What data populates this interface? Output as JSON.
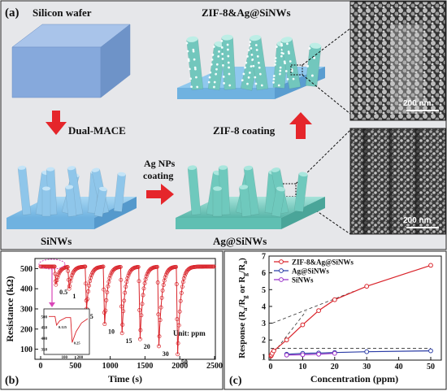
{
  "panel_a": {
    "panel_label": "(a)",
    "silicon_wafer": "Silicon wafer",
    "zif8_ag_sinws": "ZIF-8&Ag@SiNWs",
    "dual_mace": "Dual-MACE",
    "zif8_coating": "ZIF-8 coating",
    "ag_nps_coating_1": "Ag NPs",
    "ag_nps_coating_2": "coating",
    "sinws": "SiNWs",
    "ag_sinws": "Ag@SiNWs",
    "scale_top": "200 nm",
    "scale_bottom": "200 nm"
  },
  "colors": {
    "wafer_blue": "#7fa4d6",
    "nanowire_blue": "#8fc6ea",
    "ag_teal": "#6fc9bd",
    "arrow_red": "#e5262b",
    "series_zif8": "#d9232a",
    "series_ag": "#2b3da6",
    "series_sinws": "#9b33c9"
  },
  "chart_b": {
    "panel_label": "(b)",
    "ylabel": "Resistance (kΩ)",
    "xlabel": "Time (s)",
    "unit_note": "Unit: ppm",
    "x_ticks": [
      "0",
      "500",
      "1000",
      "1500",
      "2000",
      "2500"
    ],
    "y_ticks": [
      "100",
      "200",
      "300",
      "400",
      "500"
    ],
    "conc_labels": [
      "0.5",
      "1",
      "5",
      "10",
      "15",
      "20",
      "30",
      "50"
    ],
    "inset": {
      "y_ticks": [
        "500",
        "450",
        "400",
        "350"
      ],
      "x_ticks": [
        "100",
        "200"
      ],
      "peak_labels": [
        "0.125",
        "0.25"
      ]
    }
  },
  "chart_data": [
    {
      "type": "line",
      "panel": "(b)",
      "xlabel": "Time (s)",
      "ylabel": "Resistance (kΩ)",
      "xlim": [
        0,
        2500
      ],
      "ylim": [
        50,
        550
      ],
      "baseline": 510,
      "dips": [
        {
          "concentration": 0.5,
          "t_start": 200,
          "min": 420
        },
        {
          "concentration": 1,
          "t_start": 390,
          "min": 400
        },
        {
          "concentration": 5,
          "t_start": 640,
          "min": 300
        },
        {
          "concentration": 10,
          "t_start": 900,
          "min": 225
        },
        {
          "concentration": 15,
          "t_start": 1150,
          "min": 180
        },
        {
          "concentration": 20,
          "t_start": 1410,
          "min": 150
        },
        {
          "concentration": 30,
          "t_start": 1680,
          "min": 115
        },
        {
          "concentration": 50,
          "t_start": 1950,
          "min": 75
        }
      ]
    },
    {
      "type": "line",
      "panel": "(c)",
      "xlabel": "Concentration (ppm)",
      "ylabel": "Response (Ra/Rg or Rg/Ra)",
      "xlim": [
        0,
        50
      ],
      "ylim": [
        0.8,
        7
      ],
      "x_ticks": [
        "0",
        "10",
        "20",
        "30",
        "40",
        "50"
      ],
      "y_ticks": [
        "1",
        "2",
        "3",
        "4",
        "5",
        "6",
        "7"
      ],
      "legend_position": "top-left",
      "reference_line_y": 1.5,
      "series": [
        {
          "name": "ZIF-8&Ag@SiNWs",
          "x": [
            0.125,
            0.25,
            0.5,
            1,
            5,
            10,
            15,
            20,
            30,
            50
          ],
          "y": [
            1.05,
            1.1,
            1.2,
            1.35,
            2.0,
            2.9,
            3.75,
            4.4,
            5.2,
            6.45
          ]
        },
        {
          "name": "Ag@SiNWs",
          "x": [
            5,
            10,
            15,
            20,
            30,
            50
          ],
          "y": [
            1.15,
            1.2,
            1.22,
            1.25,
            1.3,
            1.35
          ]
        },
        {
          "name": "SiNWs",
          "x": [
            5,
            10,
            15,
            20
          ],
          "y": [
            1.1,
            1.12,
            1.15,
            1.2
          ]
        }
      ]
    }
  ]
}
